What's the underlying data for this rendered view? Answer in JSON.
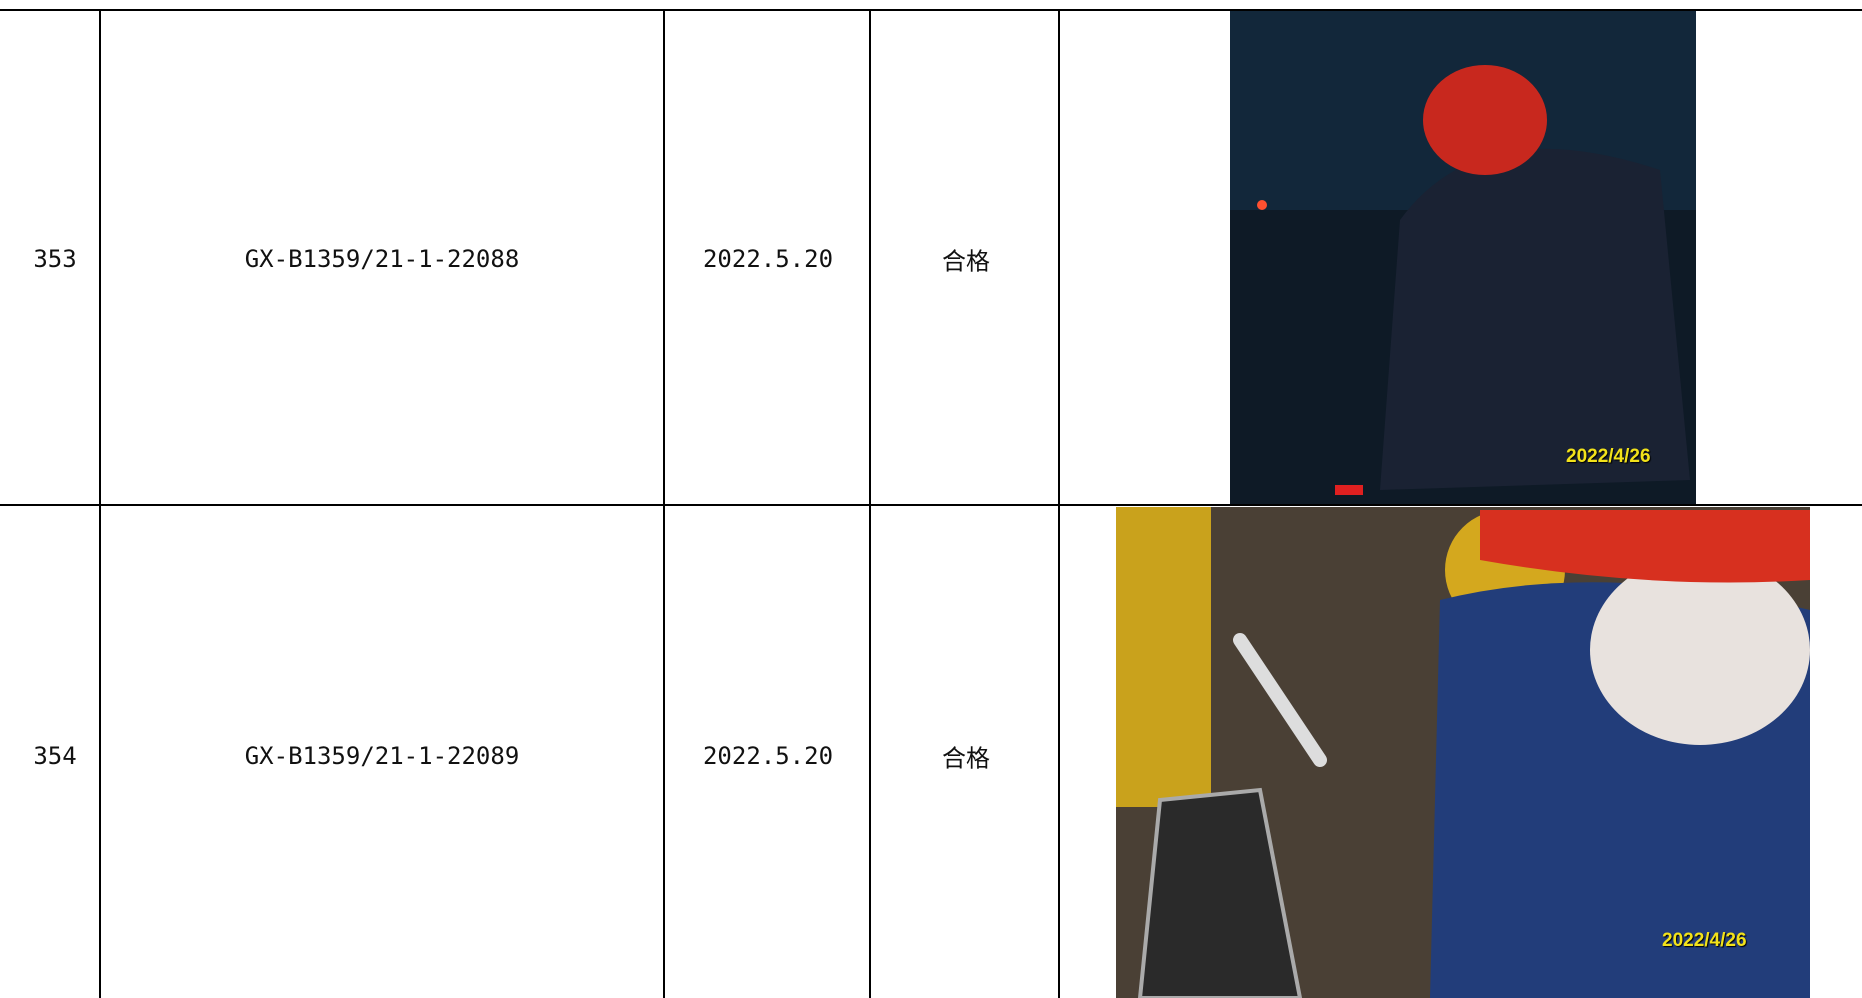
{
  "table": {
    "rows": [
      [
        "353",
        "GX-B1359/21-1-22088",
        "2022.5.20",
        "合格",
        "2022/4/26"
      ],
      [
        "354",
        "GX-B1359/21-1-22089",
        "2022.5.20",
        "合格",
        "2022/4/26"
      ]
    ]
  }
}
